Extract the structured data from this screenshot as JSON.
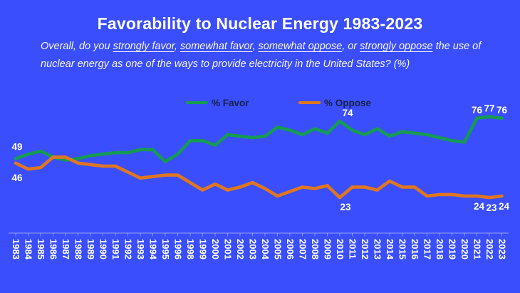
{
  "title": "Favorability to Nuclear Energy 1983-2023",
  "subtitle": {
    "segments": [
      {
        "text": "Overall, do you ",
        "underline": false
      },
      {
        "text": "strongly favor",
        "underline": true
      },
      {
        "text": ", ",
        "underline": false
      },
      {
        "text": "somewhat favor",
        "underline": true
      },
      {
        "text": ", ",
        "underline": false
      },
      {
        "text": "somewhat oppose",
        "underline": true
      },
      {
        "text": ", or ",
        "underline": false
      },
      {
        "text": "strongly oppose",
        "underline": true
      },
      {
        "text": " the use of nuclear energy as one of the ways to provide electricity in the United States? (%)",
        "underline": false
      }
    ]
  },
  "legend": [
    {
      "label": "% Favor",
      "color": "#169b53"
    },
    {
      "label": "% Oppose",
      "color": "#e0771f"
    }
  ],
  "colors": {
    "background": "#3a4efd",
    "favor_line": "#169b53",
    "oppose_line": "#e0771f",
    "text": "#ffffff",
    "legend_text": "#162247",
    "axis": "rgba(255,255,255,0.38)"
  },
  "chart_data": {
    "type": "line",
    "title": "Favorability to Nuclear Energy 1983-2023",
    "x": [
      1983,
      1984,
      1985,
      1986,
      1987,
      1988,
      1989,
      1990,
      1991,
      1992,
      1993,
      1994,
      1995,
      1996,
      1998,
      1999,
      2000,
      2001,
      2002,
      2003,
      2004,
      2005,
      2006,
      2007,
      2008,
      2009,
      2010,
      2011,
      2012,
      2013,
      2014,
      2015,
      2016,
      2017,
      2018,
      2019,
      2020,
      2021,
      2022,
      2023
    ],
    "x_note": "1997 not surveyed / omitted from axis",
    "series": [
      {
        "name": "% Favor",
        "values": [
          49,
          52,
          54,
          50,
          48,
          49,
          51,
          52,
          53,
          53,
          55,
          55,
          47,
          52,
          61,
          61,
          58,
          65,
          64,
          63,
          64,
          70,
          68,
          65,
          69,
          66,
          74,
          68,
          65,
          69,
          64,
          67,
          66,
          65,
          63,
          61,
          60,
          76,
          77,
          76
        ]
      },
      {
        "name": "% Oppose",
        "values": [
          46,
          42,
          43,
          50,
          50,
          46,
          45,
          44,
          44,
          40,
          36,
          37,
          38,
          38,
          33,
          28,
          32,
          28,
          30,
          33,
          29,
          24,
          27,
          30,
          29,
          31,
          23,
          30,
          30,
          28,
          34,
          30,
          30,
          24,
          25,
          25,
          24,
          24,
          23,
          24
        ]
      }
    ],
    "annotations": [
      {
        "series": 0,
        "year": 1983,
        "text": "49",
        "placement": "above-start"
      },
      {
        "series": 1,
        "year": 1983,
        "text": "46",
        "placement": "below-start"
      },
      {
        "series": 0,
        "year": 2010,
        "text": "74",
        "placement": "above-right"
      },
      {
        "series": 1,
        "year": 2010,
        "text": "23",
        "placement": "below-right"
      },
      {
        "series": 0,
        "year": 2021,
        "text": "76",
        "placement": "above"
      },
      {
        "series": 0,
        "year": 2022,
        "text": "77",
        "placement": "above"
      },
      {
        "series": 0,
        "year": 2023,
        "text": "76",
        "placement": "above"
      },
      {
        "series": 1,
        "year": 2021,
        "text": "24",
        "placement": "below"
      },
      {
        "series": 1,
        "year": 2022,
        "text": "23",
        "placement": "below"
      },
      {
        "series": 1,
        "year": 2023,
        "text": "24",
        "placement": "below"
      }
    ],
    "ylim": [
      0,
      100
    ],
    "y_axis": "hidden",
    "grid": false,
    "legend_position": "top-center"
  }
}
